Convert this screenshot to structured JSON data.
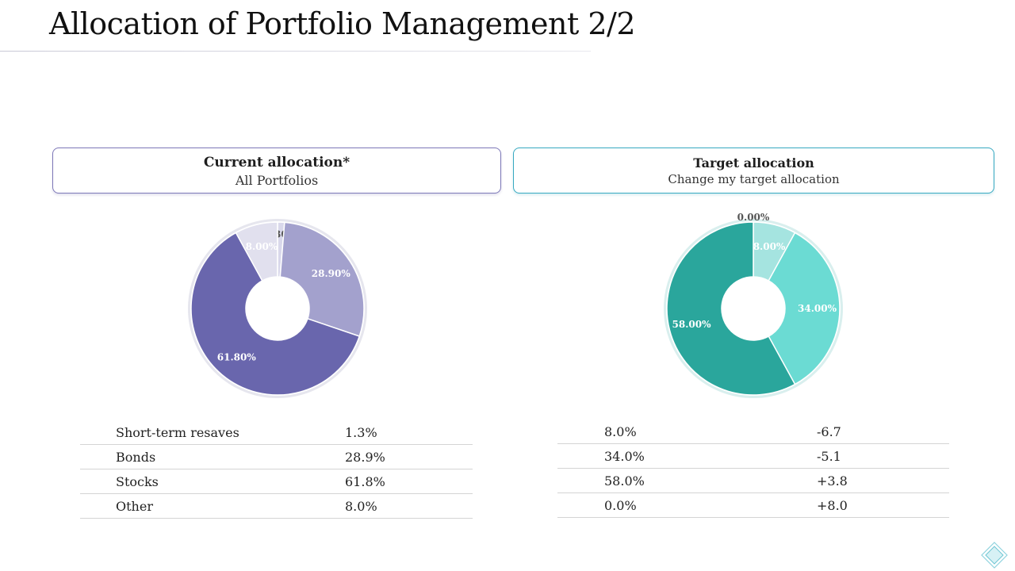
{
  "title": "Allocation of Portfolio Management 2/2",
  "current": {
    "heading": "Current allocation*",
    "subheading": "All Portfolios"
  },
  "target": {
    "heading": "Target allocation",
    "subheading": "Change my target allocation"
  },
  "chart_data": [
    {
      "type": "pie",
      "title": "Current allocation",
      "categories": [
        "Short-term resaves",
        "Bonds",
        "Stocks",
        "Other"
      ],
      "values": [
        1.3,
        28.9,
        61.8,
        8.0
      ],
      "labels": [
        "1.30%",
        "28.90%",
        "61.80%",
        "8.00%"
      ],
      "colors": [
        "#d9d8eb",
        "#a3a1cd",
        "#6966ad",
        "#e1e0ee"
      ],
      "label_colors": [
        "#555555",
        "#ffffff",
        "#ffffff",
        "#ffffff"
      ],
      "ring_color": "#e6e6ee"
    },
    {
      "type": "pie",
      "title": "Target allocation",
      "categories": [
        "Short-term resaves",
        "Bonds",
        "Stocks",
        "Other"
      ],
      "values": [
        8.0,
        34.0,
        58.0,
        0.0
      ],
      "labels": [
        "8.00%",
        "34.00%",
        "58.00%",
        "0.00%"
      ],
      "colors": [
        "#a5e4e0",
        "#6bdbd3",
        "#2aa69c",
        "#e6f6f5"
      ],
      "label_colors": [
        "#ffffff",
        "#ffffff",
        "#ffffff",
        "#555555"
      ],
      "ring_color": "#d9efee"
    }
  ],
  "current_table": [
    {
      "label": "Short-term resaves",
      "value": "1.3%"
    },
    {
      "label": "Bonds",
      "value": "28.9%"
    },
    {
      "label": "Stocks",
      "value": "61.8%"
    },
    {
      "label": "Other",
      "value": "8.0%"
    }
  ],
  "target_table": [
    {
      "target": "8.0%",
      "change": "-6.7"
    },
    {
      "target": "34.0%",
      "change": "-5.1"
    },
    {
      "target": "58.0%",
      "change": "+3.8"
    },
    {
      "target": "0.0%",
      "change": "+8.0"
    }
  ],
  "colors": {
    "current_accent": "#6966ad",
    "target_accent": "#2aa69c"
  },
  "corner_icon": "diamond-icon"
}
